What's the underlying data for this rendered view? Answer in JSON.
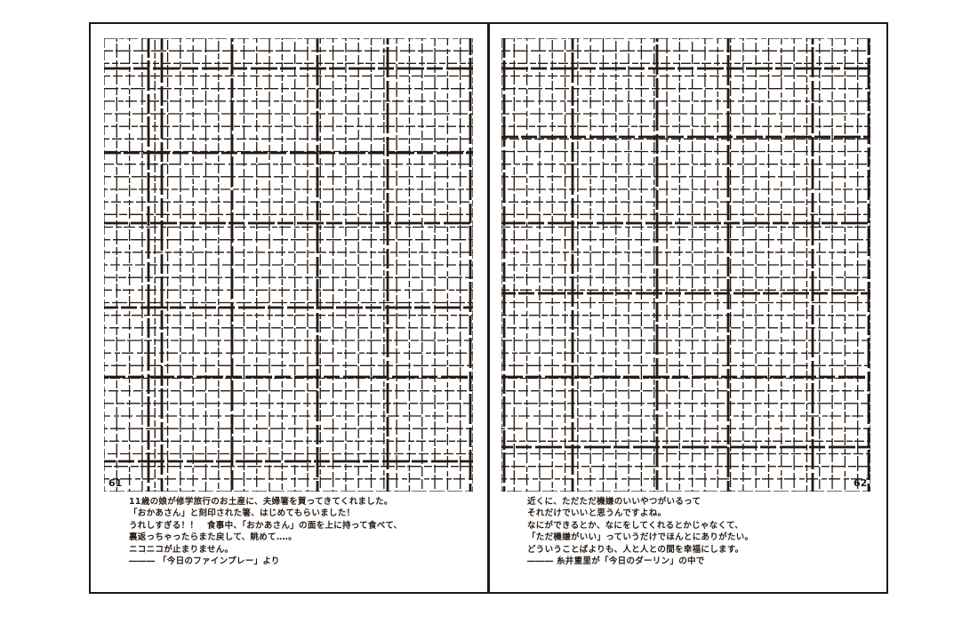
{
  "colors": {
    "ink": "#241a13",
    "paper": "#ffffff"
  },
  "pages": [
    {
      "side": "left",
      "number": "61",
      "quote_lines": [
        "11歳の娘が修学旅行のお土産に、夫婦箸を買ってきてくれました。",
        "「おかあさん」と刻印された箸、はじめてもらいました！",
        "うれしすぎる！！　食事中、「おかあさん」の面を上に持って食べて、",
        "裏返っちゃったらまた戻して、眺めて‥‥。",
        "ニコニコが止まりません。",
        "――― 「今日のファインプレー」より"
      ]
    },
    {
      "side": "right",
      "number": "62",
      "quote_lines": [
        "近くに、ただただ機嫌のいいやつがいるって",
        "それだけでいいと思うんですよね。",
        "なにができるとか、なにをしてくれるとかじゃなくて、",
        "「ただ機嫌がいい」っていうだけでほんとにありがたい。",
        "どういうことばよりも、人と人との間を幸福にします。",
        "――― 糸井重里が「今日のダーリン」の中で"
      ]
    }
  ]
}
